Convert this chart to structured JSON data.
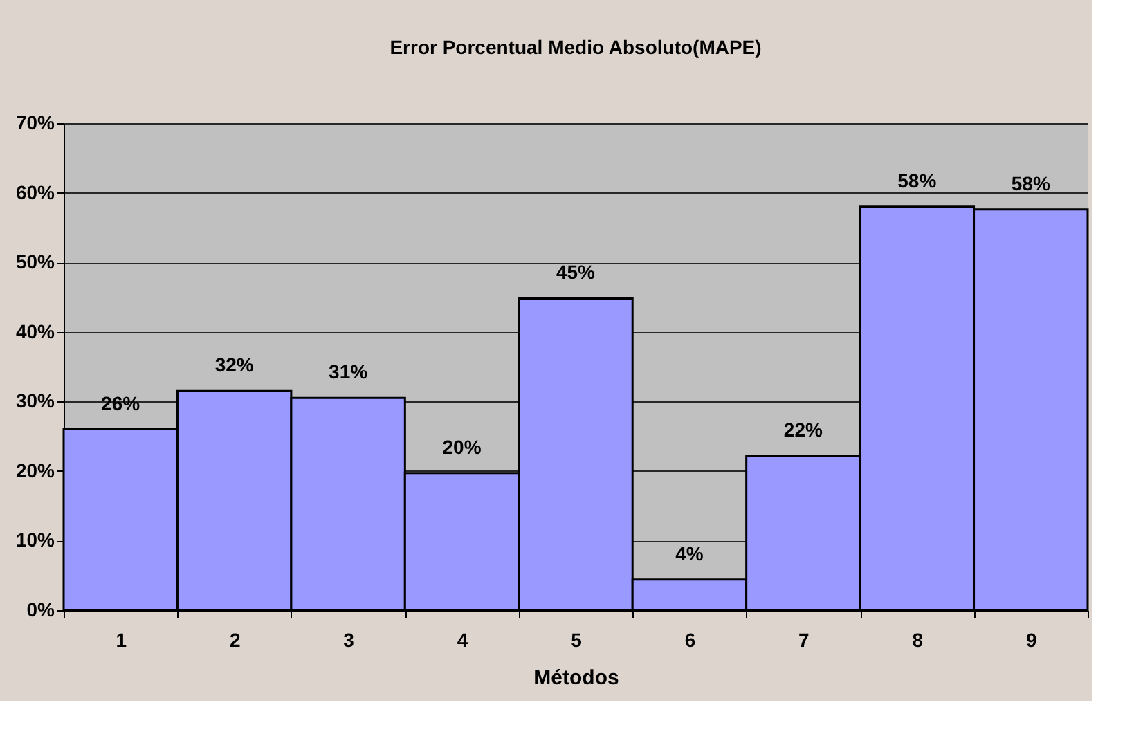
{
  "chart_data": {
    "type": "bar",
    "title": "Error Porcentual Medio Absoluto(MAPE)",
    "xlabel": "Métodos",
    "categories": [
      "1",
      "2",
      "3",
      "4",
      "5",
      "6",
      "7",
      "8",
      "9"
    ],
    "values": [
      26.0,
      31.5,
      30.5,
      19.7,
      44.8,
      4.4,
      22.2,
      58.0,
      57.6
    ],
    "value_labels": [
      "26%",
      "32%",
      "31%",
      "20%",
      "45%",
      "4%",
      "22%",
      "58%",
      "58%"
    ],
    "color": "#9999ff",
    "ylim": [
      0,
      70
    ],
    "yticks": [
      {
        "value": 0,
        "label": "0%"
      },
      {
        "value": 10,
        "label": "10%"
      },
      {
        "value": 20,
        "label": "20%"
      },
      {
        "value": 30,
        "label": "30%"
      },
      {
        "value": 40,
        "label": "40%"
      },
      {
        "value": 50,
        "label": "50%"
      },
      {
        "value": 60,
        "label": "60%"
      },
      {
        "value": 70,
        "label": "70%"
      }
    ],
    "grid": "y"
  }
}
